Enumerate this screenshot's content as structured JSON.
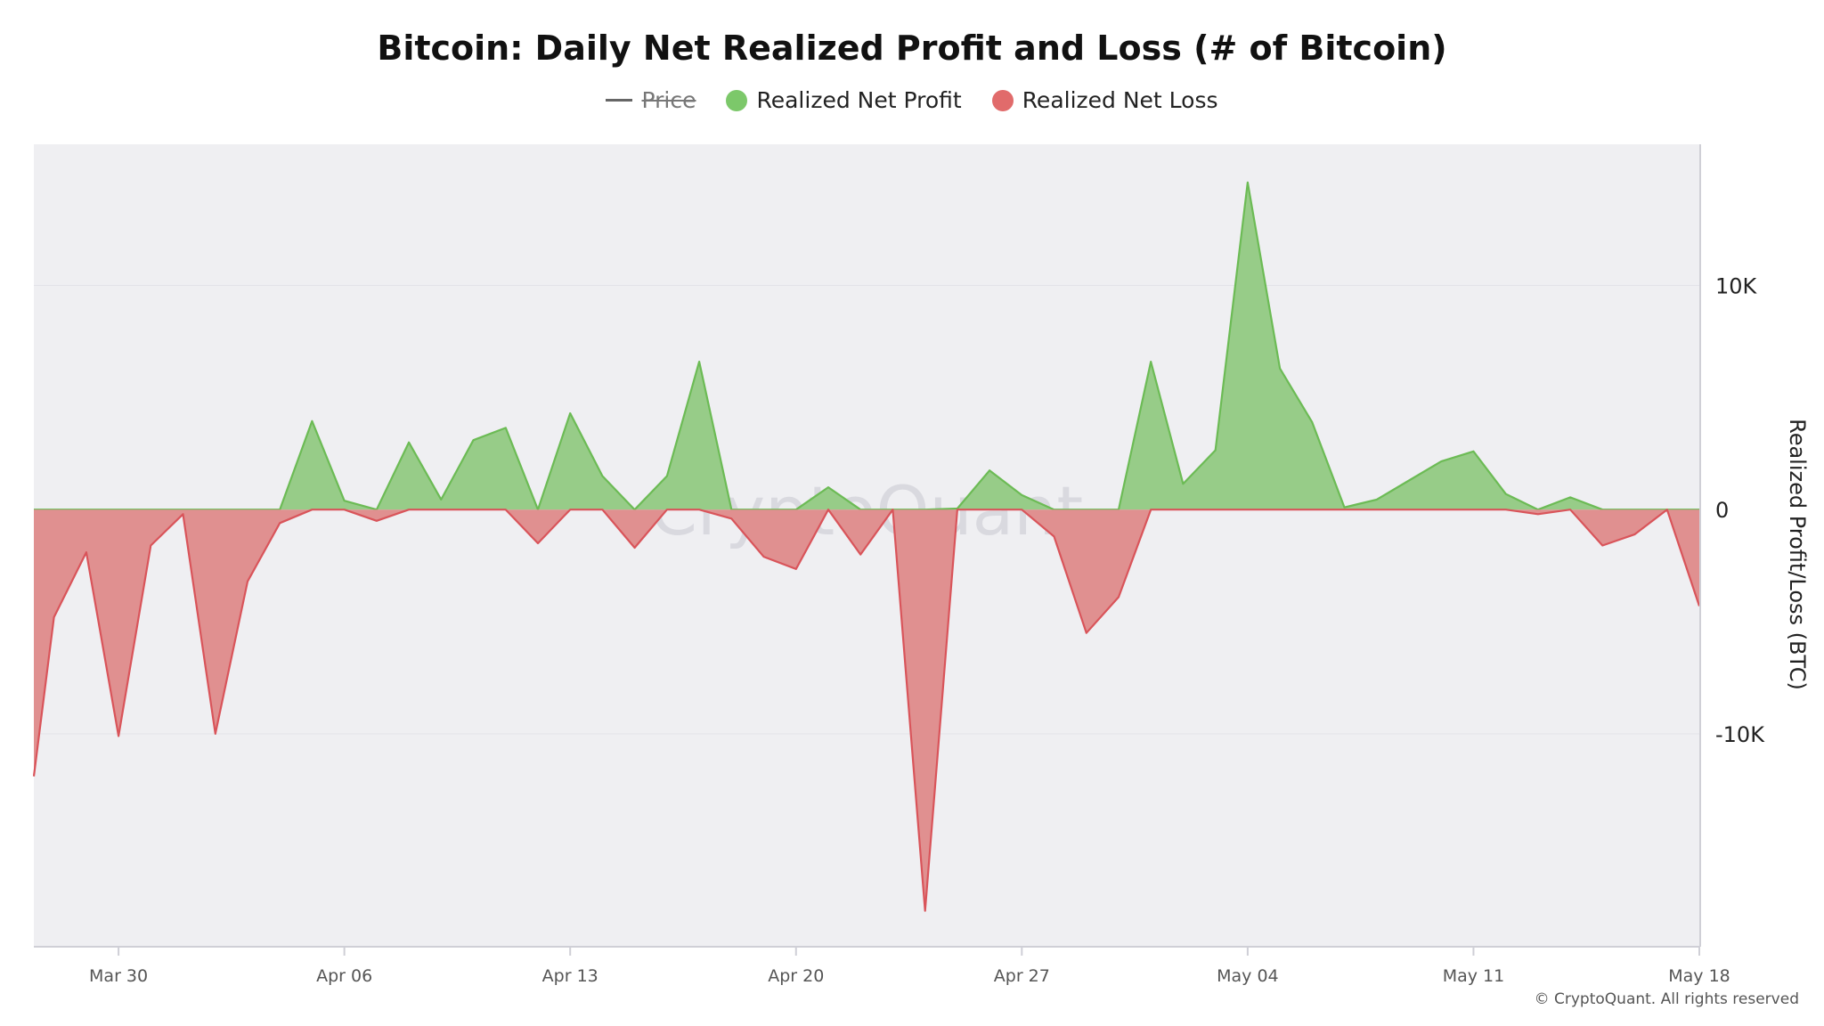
{
  "title": "Bitcoin: Daily Net Realized Profit and Loss (# of Bitcoin)",
  "legend": [
    {
      "label": "Price",
      "marker": "line",
      "color": "#666666",
      "hidden": true
    },
    {
      "label": "Realized Net Profit",
      "marker": "dot",
      "color": "#7cc86a",
      "hidden": false
    },
    {
      "label": "Realized Net Loss",
      "marker": "dot",
      "color": "#e16b6b",
      "hidden": false
    }
  ],
  "watermark": "CryptoQuant",
  "copyright": "© CryptoQuant. All rights reserved",
  "chart_data": {
    "type": "area",
    "ylabel": "Realized Profit/Loss (BTC)",
    "ylim": [
      -19500,
      16300
    ],
    "y_ticks": [
      10000,
      0,
      -10000
    ],
    "y_tick_labels": [
      "10K",
      "0",
      "-10K"
    ],
    "x_ticks": [
      {
        "date": "2025-03-30",
        "label": "Mar 30"
      },
      {
        "date": "2025-04-06",
        "label": "Apr 06"
      },
      {
        "date": "2025-04-13",
        "label": "Apr 13"
      },
      {
        "date": "2025-04-20",
        "label": "Apr 20"
      },
      {
        "date": "2025-04-27",
        "label": "Apr 27"
      },
      {
        "date": "2025-05-04",
        "label": "May 04"
      },
      {
        "date": "2025-05-11",
        "label": "May 11"
      },
      {
        "date": "2025-05-18",
        "label": "May 18"
      }
    ],
    "xlim": [
      "2025-03-27 09:00",
      "2025-05-18"
    ],
    "grid": "horizontal",
    "colors": {
      "profit_fill": "#97cc88",
      "profit_line": "#6cbb55",
      "loss_fill": "#e09090",
      "loss_line": "#d9545a",
      "plot_bg": "#efeff2"
    },
    "series": [
      {
        "name": "Realized Net Profit",
        "points": [
          [
            "2025-03-27 09:00",
            0
          ],
          [
            "2025-03-28",
            0
          ],
          [
            "2025-03-29",
            0
          ],
          [
            "2025-03-30",
            0
          ],
          [
            "2025-03-31",
            0
          ],
          [
            "2025-04-01",
            0
          ],
          [
            "2025-04-02",
            0
          ],
          [
            "2025-04-03",
            0
          ],
          [
            "2025-04-04",
            0
          ],
          [
            "2025-04-05",
            3950
          ],
          [
            "2025-04-06",
            400
          ],
          [
            "2025-04-07",
            0
          ],
          [
            "2025-04-08",
            3000
          ],
          [
            "2025-04-09",
            450
          ],
          [
            "2025-04-10",
            3100
          ],
          [
            "2025-04-11",
            3650
          ],
          [
            "2025-04-12",
            0
          ],
          [
            "2025-04-13",
            4300
          ],
          [
            "2025-04-14",
            1500
          ],
          [
            "2025-04-15",
            0
          ],
          [
            "2025-04-16",
            1500
          ],
          [
            "2025-04-17",
            6600
          ],
          [
            "2025-04-18",
            0
          ],
          [
            "2025-04-19",
            0
          ],
          [
            "2025-04-20",
            0
          ],
          [
            "2025-04-21",
            1000
          ],
          [
            "2025-04-22",
            0
          ],
          [
            "2025-04-23",
            0
          ],
          [
            "2025-04-24",
            0
          ],
          [
            "2025-04-25",
            50
          ],
          [
            "2025-04-26",
            1750
          ],
          [
            "2025-04-27",
            650
          ],
          [
            "2025-04-28",
            0
          ],
          [
            "2025-04-29",
            0
          ],
          [
            "2025-04-30",
            0
          ],
          [
            "2025-05-01",
            6600
          ],
          [
            "2025-05-02",
            1150
          ],
          [
            "2025-05-03",
            2650
          ],
          [
            "2025-05-04",
            14600
          ],
          [
            "2025-05-05",
            6300
          ],
          [
            "2025-05-06",
            3900
          ],
          [
            "2025-05-07",
            100
          ],
          [
            "2025-05-08",
            450
          ],
          [
            "2025-05-09",
            1300
          ],
          [
            "2025-05-10",
            2150
          ],
          [
            "2025-05-11",
            2600
          ],
          [
            "2025-05-12",
            700
          ],
          [
            "2025-05-13",
            0
          ],
          [
            "2025-05-14",
            550
          ],
          [
            "2025-05-15",
            0
          ],
          [
            "2025-05-16",
            0
          ],
          [
            "2025-05-17",
            0
          ],
          [
            "2025-05-18",
            0
          ]
        ]
      },
      {
        "name": "Realized Net Loss",
        "points": [
          [
            "2025-03-27 09:00",
            -11900
          ],
          [
            "2025-03-28",
            -4800
          ],
          [
            "2025-03-29",
            -1900
          ],
          [
            "2025-03-30",
            -10100
          ],
          [
            "2025-03-31",
            -1600
          ],
          [
            "2025-04-01",
            -200
          ],
          [
            "2025-04-02",
            -10000
          ],
          [
            "2025-04-03",
            -3200
          ],
          [
            "2025-04-04",
            -600
          ],
          [
            "2025-04-05",
            0
          ],
          [
            "2025-04-06",
            0
          ],
          [
            "2025-04-07",
            -500
          ],
          [
            "2025-04-08",
            0
          ],
          [
            "2025-04-09",
            0
          ],
          [
            "2025-04-10",
            0
          ],
          [
            "2025-04-11",
            0
          ],
          [
            "2025-04-12",
            -1500
          ],
          [
            "2025-04-13",
            0
          ],
          [
            "2025-04-14",
            0
          ],
          [
            "2025-04-15",
            -1700
          ],
          [
            "2025-04-16",
            0
          ],
          [
            "2025-04-17",
            0
          ],
          [
            "2025-04-18",
            -400
          ],
          [
            "2025-04-19",
            -2100
          ],
          [
            "2025-04-20",
            -2650
          ],
          [
            "2025-04-21",
            0
          ],
          [
            "2025-04-22",
            -2000
          ],
          [
            "2025-04-23",
            0
          ],
          [
            "2025-04-24",
            -17900
          ],
          [
            "2025-04-25",
            0
          ],
          [
            "2025-04-26",
            0
          ],
          [
            "2025-04-27",
            0
          ],
          [
            "2025-04-28",
            -1200
          ],
          [
            "2025-04-29",
            -5500
          ],
          [
            "2025-04-30",
            -3900
          ],
          [
            "2025-05-01",
            0
          ],
          [
            "2025-05-02",
            0
          ],
          [
            "2025-05-03",
            0
          ],
          [
            "2025-05-04",
            0
          ],
          [
            "2025-05-05",
            0
          ],
          [
            "2025-05-06",
            0
          ],
          [
            "2025-05-07",
            0
          ],
          [
            "2025-05-08",
            0
          ],
          [
            "2025-05-09",
            0
          ],
          [
            "2025-05-10",
            0
          ],
          [
            "2025-05-11",
            0
          ],
          [
            "2025-05-12",
            0
          ],
          [
            "2025-05-13",
            -200
          ],
          [
            "2025-05-14",
            0
          ],
          [
            "2025-05-15",
            -1600
          ],
          [
            "2025-05-16",
            -1100
          ],
          [
            "2025-05-17",
            0
          ],
          [
            "2025-05-18",
            -4300
          ]
        ]
      }
    ]
  }
}
